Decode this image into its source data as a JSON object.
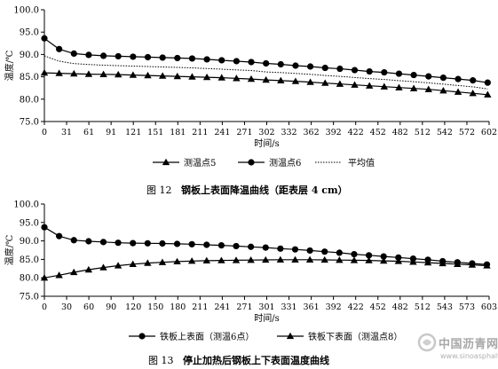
{
  "chart_data": [
    {
      "type": "line",
      "figure_label": "图 12",
      "caption": "钢板上表面降温曲线（距表层 4 cm）",
      "xlabel": "时间/s",
      "ylabel": "温度/℃",
      "xlim": [
        0,
        602
      ],
      "ylim": [
        75.0,
        100.0
      ],
      "yticks": [
        "75.0",
        "80.0",
        "85.0",
        "90.0",
        "95.0",
        "100.0"
      ],
      "x_tick_labels": [
        "0",
        "31",
        "61",
        "91",
        "121",
        "151",
        "181",
        "211",
        "241",
        "271",
        "302",
        "332",
        "362",
        "392",
        "422",
        "452",
        "482",
        "512",
        "542",
        "572",
        "602"
      ],
      "legend_position": "bottom",
      "series": [
        {
          "name": "测温点5",
          "marker": "triangle",
          "line": "solid",
          "x": [
            0,
            20,
            40,
            60,
            80,
            100,
            120,
            140,
            160,
            180,
            200,
            220,
            240,
            260,
            280,
            300,
            320,
            340,
            360,
            380,
            400,
            420,
            440,
            460,
            480,
            500,
            520,
            540,
            560,
            580,
            600
          ],
          "values": [
            85.9,
            85.8,
            85.7,
            85.6,
            85.55,
            85.5,
            85.4,
            85.3,
            85.2,
            85.1,
            85.0,
            84.9,
            84.8,
            84.65,
            84.5,
            84.3,
            84.15,
            84.0,
            83.8,
            83.6,
            83.4,
            83.2,
            83.0,
            82.8,
            82.6,
            82.4,
            82.2,
            81.9,
            81.6,
            81.3,
            81.0
          ]
        },
        {
          "name": "测温点6",
          "marker": "circle",
          "line": "solid",
          "x": [
            0,
            20,
            40,
            60,
            80,
            100,
            120,
            140,
            160,
            180,
            200,
            220,
            240,
            260,
            280,
            300,
            320,
            340,
            360,
            380,
            400,
            420,
            440,
            460,
            480,
            500,
            520,
            540,
            560,
            580,
            600
          ],
          "values": [
            93.6,
            91.2,
            90.2,
            89.9,
            89.7,
            89.6,
            89.5,
            89.4,
            89.3,
            89.2,
            89.1,
            88.9,
            88.7,
            88.5,
            88.3,
            88.0,
            87.8,
            87.5,
            87.3,
            87.0,
            86.8,
            86.5,
            86.2,
            86.0,
            85.7,
            85.4,
            85.1,
            84.8,
            84.5,
            84.2,
            83.7
          ]
        },
        {
          "name": "平均值",
          "marker": "none",
          "line": "dotted",
          "x": [
            0,
            20,
            40,
            60,
            80,
            100,
            120,
            140,
            160,
            180,
            200,
            220,
            240,
            260,
            280,
            300,
            320,
            340,
            360,
            380,
            400,
            420,
            440,
            460,
            480,
            500,
            520,
            540,
            560,
            580,
            600
          ],
          "values": [
            89.7,
            88.5,
            87.95,
            87.75,
            87.6,
            87.5,
            87.4,
            87.3,
            87.2,
            87.1,
            87.0,
            86.85,
            86.7,
            86.55,
            86.4,
            86.1,
            85.95,
            85.75,
            85.55,
            85.3,
            85.1,
            84.85,
            84.6,
            84.4,
            84.15,
            83.9,
            83.65,
            83.35,
            83.05,
            82.75,
            82.3
          ]
        }
      ]
    },
    {
      "type": "line",
      "figure_label": "图 13",
      "caption": "停止加热后钢板上下表面温度曲线",
      "xlabel": "时间/s",
      "ylabel": "温度/℃",
      "xlim": [
        0,
        603
      ],
      "ylim": [
        75.0,
        100.0
      ],
      "yticks": [
        "75.0",
        "80.0",
        "85.0",
        "90.0",
        "95.0",
        "100.0"
      ],
      "x_tick_labels": [
        "0",
        "30",
        "60",
        "90",
        "120",
        "150",
        "180",
        "211",
        "241",
        "271",
        "301",
        "331",
        "361",
        "392",
        "422",
        "452",
        "482",
        "512",
        "543",
        "573",
        "603"
      ],
      "legend_position": "bottom",
      "series": [
        {
          "name": "铁板上表面（测温6点）",
          "marker": "circle",
          "line": "solid",
          "x": [
            0,
            20,
            40,
            60,
            80,
            100,
            120,
            140,
            160,
            180,
            200,
            220,
            240,
            260,
            280,
            300,
            320,
            340,
            360,
            380,
            400,
            420,
            440,
            460,
            480,
            500,
            520,
            540,
            560,
            580,
            600
          ],
          "values": [
            93.7,
            91.3,
            90.2,
            89.9,
            89.7,
            89.5,
            89.4,
            89.35,
            89.3,
            89.2,
            89.1,
            88.95,
            88.8,
            88.6,
            88.4,
            88.2,
            87.9,
            87.7,
            87.4,
            87.1,
            86.8,
            86.4,
            86.1,
            85.8,
            85.5,
            85.2,
            84.9,
            84.5,
            84.2,
            83.9,
            83.6
          ]
        },
        {
          "name": "铁板下表面（测温点8）",
          "marker": "triangle",
          "line": "solid",
          "x": [
            0,
            20,
            40,
            60,
            80,
            100,
            120,
            140,
            160,
            180,
            200,
            220,
            240,
            260,
            280,
            300,
            320,
            340,
            360,
            380,
            400,
            420,
            440,
            460,
            480,
            500,
            520,
            540,
            560,
            580,
            600
          ],
          "values": [
            80.0,
            80.7,
            81.5,
            82.2,
            82.8,
            83.3,
            83.7,
            84.0,
            84.2,
            84.4,
            84.55,
            84.65,
            84.7,
            84.75,
            84.8,
            84.85,
            84.9,
            84.9,
            84.9,
            84.85,
            84.8,
            84.75,
            84.7,
            84.6,
            84.5,
            84.3,
            84.1,
            83.9,
            83.7,
            83.5,
            83.3
          ]
        }
      ]
    }
  ],
  "watermark": {
    "text": "中国沥青网",
    "url": "www.sinoasphalt.com"
  }
}
